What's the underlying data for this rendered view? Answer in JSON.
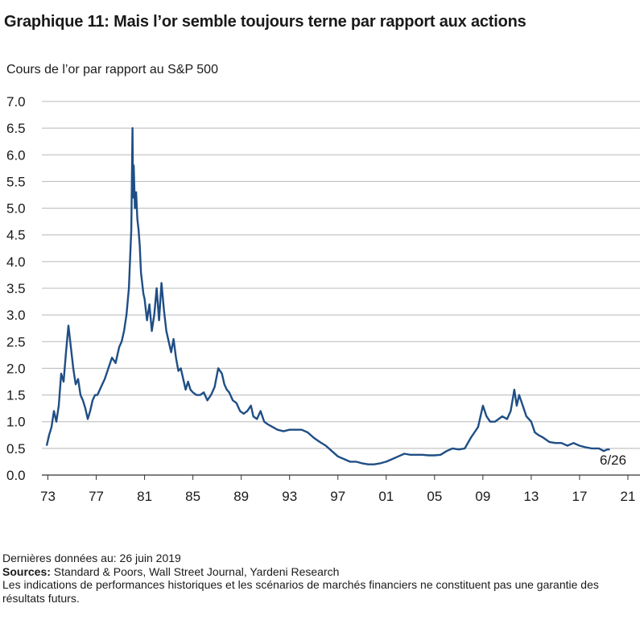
{
  "header": {
    "title": "Graphique 11: Mais l’or semble toujours terne par rapport aux actions",
    "subtitle": "Cours de l’or par rapport au S&P 500"
  },
  "footer": {
    "last_data": "Dernières données au: 26 juin 2019",
    "sources_label": "Sources:",
    "sources_text": " Standard & Poors, Wall Street Journal, Yardeni Research",
    "disclaimer": "Les indications de performances historiques et les scénarios de marchés financiers ne constituent pas une garantie des résultats futurs."
  },
  "chart_data": {
    "type": "line",
    "title": "Graphique 11: Mais l’or semble toujours terne par rapport aux actions",
    "ylabel": "Cours de l’or par rapport au S&P 500",
    "xlabel": "",
    "ylim": [
      0,
      7
    ],
    "xlim": [
      1972.5,
      2022.0
    ],
    "y_ticks": [
      "0.0",
      "0.5",
      "1.0",
      "1.5",
      "2.0",
      "2.5",
      "3.0",
      "3.5",
      "4.0",
      "4.5",
      "5.0",
      "5.5",
      "6.0",
      "6.5",
      "7.0"
    ],
    "x_ticks": [
      {
        "label": "73",
        "year": 1973
      },
      {
        "label": "77",
        "year": 1977
      },
      {
        "label": "81",
        "year": 1981
      },
      {
        "label": "85",
        "year": 1985
      },
      {
        "label": "89",
        "year": 1989
      },
      {
        "label": "93",
        "year": 1993
      },
      {
        "label": "97",
        "year": 1997
      },
      {
        "label": "01",
        "year": 2001
      },
      {
        "label": "05",
        "year": 2005
      },
      {
        "label": "09",
        "year": 2009
      },
      {
        "label": "13",
        "year": 2013
      },
      {
        "label": "17",
        "year": 2017
      },
      {
        "label": "21",
        "year": 2021
      }
    ],
    "grid": true,
    "line_color": "#1f4e85",
    "end_annotation": "6/26",
    "series": [
      {
        "x": [
          1972.9,
          1973.1,
          1973.3,
          1973.5,
          1973.7,
          1973.9,
          1974.1,
          1974.3,
          1974.5,
          1974.7,
          1974.9,
          1975.1,
          1975.3,
          1975.5,
          1975.7,
          1975.9,
          1976.1,
          1976.3,
          1976.5,
          1976.7,
          1976.9,
          1977.1,
          1977.4,
          1977.7,
          1978.0,
          1978.3,
          1978.6,
          1978.9,
          1979.1,
          1979.3,
          1979.5,
          1979.7,
          1979.9,
          1980.0,
          1980.05,
          1980.1,
          1980.2,
          1980.3,
          1980.4,
          1980.5,
          1980.6,
          1980.7,
          1980.8,
          1980.9,
          1981.0,
          1981.2,
          1981.4,
          1981.6,
          1981.8,
          1982.0,
          1982.2,
          1982.4,
          1982.6,
          1982.8,
          1983.0,
          1983.2,
          1983.4,
          1983.6,
          1983.8,
          1984.0,
          1984.2,
          1984.4,
          1984.6,
          1984.8,
          1985.0,
          1985.3,
          1985.6,
          1985.9,
          1986.2,
          1986.5,
          1986.8,
          1987.1,
          1987.4,
          1987.6,
          1987.8,
          1988.0,
          1988.3,
          1988.6,
          1988.9,
          1989.2,
          1989.5,
          1989.8,
          1990.0,
          1990.3,
          1990.6,
          1990.9,
          1991.2,
          1991.6,
          1992.0,
          1992.5,
          1993.0,
          1993.3,
          1993.6,
          1994.0,
          1994.5,
          1995.0,
          1995.5,
          1996.0,
          1996.5,
          1997.0,
          1997.5,
          1998.0,
          1998.5,
          1999.0,
          1999.5,
          2000.0,
          2000.5,
          2001.0,
          2001.5,
          2002.0,
          2002.5,
          2003.0,
          2003.5,
          2004.0,
          2004.5,
          2005.0,
          2005.5,
          2006.0,
          2006.5,
          2007.0,
          2007.5,
          2008.0,
          2008.3,
          2008.6,
          2009.0,
          2009.3,
          2009.6,
          2010.0,
          2010.3,
          2010.6,
          2011.0,
          2011.3,
          2011.6,
          2011.8,
          2012.0,
          2012.3,
          2012.6,
          2013.0,
          2013.3,
          2013.6,
          2014.0,
          2014.5,
          2015.0,
          2015.5,
          2016.0,
          2016.5,
          2017.0,
          2017.5,
          2018.0,
          2018.3,
          2018.6,
          2019.0,
          2019.3,
          2019.5
        ],
        "y": [
          0.55,
          0.75,
          0.9,
          1.2,
          1.0,
          1.3,
          1.9,
          1.75,
          2.3,
          2.8,
          2.4,
          2.0,
          1.7,
          1.8,
          1.5,
          1.4,
          1.25,
          1.05,
          1.2,
          1.4,
          1.5,
          1.5,
          1.65,
          1.8,
          2.0,
          2.2,
          2.1,
          2.4,
          2.5,
          2.7,
          3.0,
          3.5,
          4.6,
          6.5,
          5.2,
          5.8,
          5.0,
          5.3,
          4.8,
          4.6,
          4.3,
          3.8,
          3.6,
          3.4,
          3.3,
          2.9,
          3.2,
          2.7,
          3.0,
          3.5,
          2.9,
          3.6,
          3.1,
          2.7,
          2.5,
          2.3,
          2.55,
          2.2,
          1.95,
          2.0,
          1.8,
          1.6,
          1.75,
          1.6,
          1.55,
          1.5,
          1.5,
          1.55,
          1.4,
          1.5,
          1.65,
          2.0,
          1.9,
          1.7,
          1.6,
          1.55,
          1.4,
          1.35,
          1.2,
          1.15,
          1.2,
          1.3,
          1.1,
          1.05,
          1.2,
          1.0,
          0.95,
          0.9,
          0.85,
          0.82,
          0.85,
          0.85,
          0.85,
          0.85,
          0.8,
          0.7,
          0.62,
          0.55,
          0.45,
          0.35,
          0.3,
          0.25,
          0.25,
          0.22,
          0.2,
          0.2,
          0.22,
          0.25,
          0.3,
          0.35,
          0.4,
          0.38,
          0.38,
          0.38,
          0.37,
          0.37,
          0.38,
          0.45,
          0.5,
          0.48,
          0.5,
          0.7,
          0.8,
          0.9,
          1.3,
          1.1,
          1.0,
          1.0,
          1.05,
          1.1,
          1.05,
          1.2,
          1.6,
          1.3,
          1.5,
          1.3,
          1.1,
          1.0,
          0.8,
          0.75,
          0.7,
          0.62,
          0.6,
          0.6,
          0.55,
          0.6,
          0.55,
          0.52,
          0.5,
          0.5,
          0.5,
          0.45,
          0.48,
          0.48
        ]
      }
    ]
  }
}
